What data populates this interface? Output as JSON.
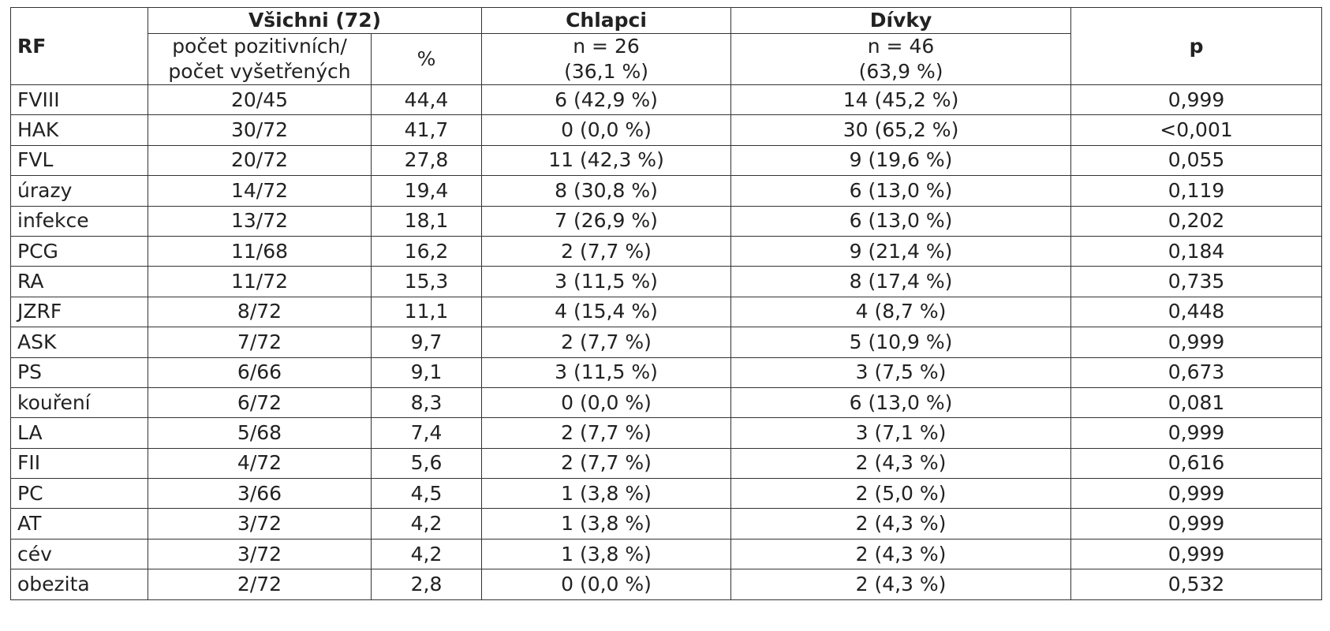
{
  "table": {
    "header": {
      "rf": "RF",
      "all": "Všichni (72)",
      "boys": "Chlapci",
      "girls": "Dívky",
      "p": "p",
      "count_line1": "počet pozitivních/",
      "count_line2": "počet vyšetřených",
      "pct": "%",
      "boys_n": "n = 26",
      "boys_pct": "(36,1 %)",
      "girls_n": "n = 46",
      "girls_pct": "(63,9 %)"
    },
    "rows": [
      [
        "FVIII",
        "20/45",
        "44,4",
        "6 (42,9 %)",
        "14 (45,2 %)",
        "0,999"
      ],
      [
        "HAK",
        "30/72",
        "41,7",
        "0 (0,0 %)",
        "30 (65,2 %)",
        "<0,001"
      ],
      [
        "FVL",
        "20/72",
        "27,8",
        "11 (42,3 %)",
        "9 (19,6 %)",
        "0,055"
      ],
      [
        "úrazy",
        "14/72",
        "19,4",
        "8 (30,8 %)",
        "6 (13,0 %)",
        "0,119"
      ],
      [
        "infekce",
        "13/72",
        "18,1",
        "7 (26,9 %)",
        "6 (13,0 %)",
        "0,202"
      ],
      [
        "PCG",
        "11/68",
        "16,2",
        "2 (7,7 %)",
        "9 (21,4 %)",
        "0,184"
      ],
      [
        "RA",
        "11/72",
        "15,3",
        "3 (11,5 %)",
        "8 (17,4 %)",
        "0,735"
      ],
      [
        "JZRF",
        "8/72",
        "11,1",
        "4 (15,4 %)",
        "4 (8,7 %)",
        "0,448"
      ],
      [
        "ASK",
        "7/72",
        "9,7",
        "2 (7,7 %)",
        "5 (10,9 %)",
        "0,999"
      ],
      [
        "PS",
        "6/66",
        "9,1",
        "3 (11,5 %)",
        "3 (7,5 %)",
        "0,673"
      ],
      [
        "kouření",
        "6/72",
        "8,3",
        "0 (0,0 %)",
        "6 (13,0 %)",
        "0,081"
      ],
      [
        "LA",
        "5/68",
        "7,4",
        "2 (7,7 %)",
        "3 (7,1 %)",
        "0,999"
      ],
      [
        "FII",
        "4/72",
        "5,6",
        "2 (7,7 %)",
        "2 (4,3 %)",
        "0,616"
      ],
      [
        "PC",
        "3/66",
        "4,5",
        "1 (3,8 %)",
        "2 (5,0 %)",
        "0,999"
      ],
      [
        "AT",
        "3/72",
        "4,2",
        "1 (3,8 %)",
        "2 (4,3 %)",
        "0,999"
      ],
      [
        "cév",
        "3/72",
        "4,2",
        "1 (3,8 %)",
        "2 (4,3 %)",
        "0,999"
      ],
      [
        "obezita",
        "2/72",
        "2,8",
        "0 (0,0 %)",
        "2 (4,3 %)",
        "0,532"
      ]
    ]
  }
}
